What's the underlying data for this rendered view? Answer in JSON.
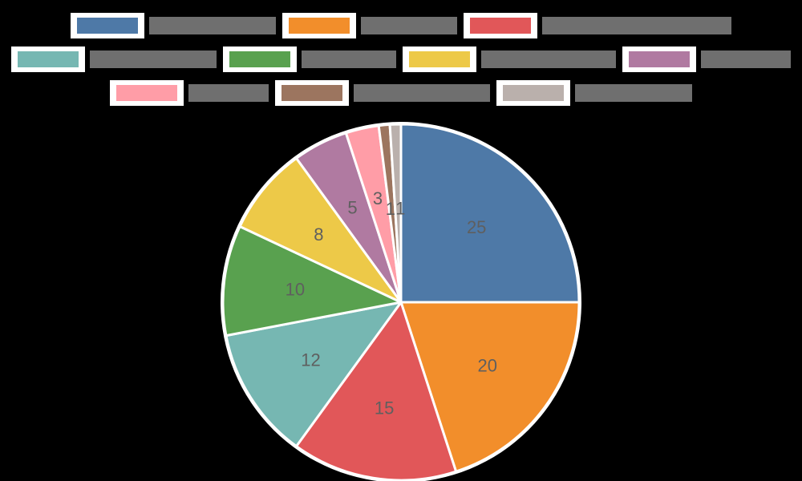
{
  "chart_data": {
    "type": "pie",
    "title": "",
    "categories": [
      "Category 1 (label illegible)",
      "Category 2 (label illegible)",
      "Category 3 (label illegible)",
      "Category 4 (label illegible)",
      "Category 5 (label illegible)",
      "Category 6 (label illegible)",
      "Category 7 (label illegible)",
      "Category 8 (label illegible)",
      "Category 9 (label illegible)",
      "Category 10 (label illegible)"
    ],
    "values": [
      25,
      20,
      15,
      12,
      10,
      8,
      5,
      3,
      1,
      1
    ],
    "colors": [
      "#4e79a7",
      "#f28e2b",
      "#e15759",
      "#76b7b2",
      "#59a14f",
      "#edc948",
      "#b07aa1",
      "#ff9da7",
      "#9c755f",
      "#bab0ac"
    ],
    "start_angle_deg": 90,
    "direction": "clockwise",
    "data_labels": [
      "25",
      "20",
      "15",
      "12",
      "10",
      "8",
      "5",
      "3",
      "1",
      "1"
    ],
    "legend_position": "top",
    "center": [
      500,
      377
    ],
    "radius": 222
  },
  "legend": {
    "rows": [
      [
        {
          "idx": 0,
          "label_width": 158
        },
        {
          "idx": 1,
          "label_width": 120
        },
        {
          "idx": 2,
          "label_width": 236
        }
      ],
      [
        {
          "idx": 3,
          "label_width": 158
        },
        {
          "idx": 4,
          "label_width": 118
        },
        {
          "idx": 5,
          "label_width": 168
        },
        {
          "idx": 6,
          "label_width": 112
        }
      ],
      [
        {
          "idx": 7,
          "label_width": 100
        },
        {
          "idx": 8,
          "label_width": 170
        },
        {
          "idx": 9,
          "label_width": 146
        }
      ]
    ]
  }
}
